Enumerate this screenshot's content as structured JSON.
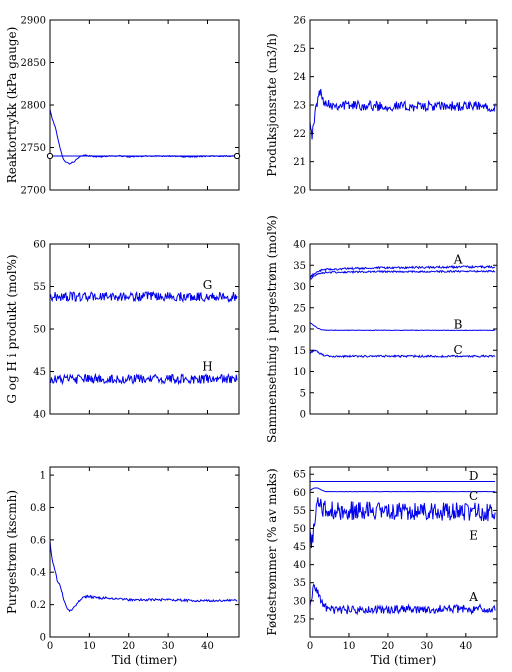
{
  "colors": {
    "line": "#0000ee",
    "axis": "#000000",
    "background": "#ffffff"
  },
  "chart_data": [
    {
      "type": "line",
      "ylabel": "Reaktortrykk (kPa gauge)",
      "xlabel": "",
      "xlim": [
        0,
        48
      ],
      "ylim": [
        2700,
        2900
      ],
      "xticks": [
        0,
        10,
        20,
        30,
        40
      ],
      "yticks": [
        2700,
        2750,
        2800,
        2850,
        2900
      ],
      "xticklabels": [],
      "yticklabels": [
        "2700",
        "2750",
        "2800",
        "2850",
        "2900"
      ],
      "grid": false,
      "series": [
        {
          "points": [
            [
              0,
              2795
            ],
            [
              0.5,
              2785
            ],
            [
              1,
              2778
            ],
            [
              1.5,
              2772
            ],
            [
              2,
              2760
            ],
            [
              2.5,
              2750
            ],
            [
              3,
              2742
            ],
            [
              3.5,
              2736
            ],
            [
              4,
              2733
            ],
            [
              5,
              2731
            ],
            [
              6,
              2733
            ],
            [
              7,
              2737
            ],
            [
              8,
              2740
            ],
            [
              9,
              2741
            ],
            [
              10,
              2740
            ],
            [
              12,
              2739
            ],
            [
              15,
              2740
            ],
            [
              18,
              2740
            ],
            [
              20,
              2739
            ],
            [
              25,
              2740
            ],
            [
              30,
              2740
            ],
            [
              35,
              2739
            ],
            [
              40,
              2740
            ],
            [
              45,
              2740
            ],
            [
              47.5,
              2740
            ]
          ],
          "noise": 0.7
        },
        {
          "points": [
            [
              0,
              2740
            ],
            [
              47.5,
              2740
            ]
          ],
          "noise": 0
        }
      ],
      "annotations": [
        {
          "text": "",
          "x": 0,
          "y": 2740,
          "kind": "marker-circle"
        },
        {
          "text": "",
          "x": 47.5,
          "y": 2740,
          "kind": "marker-circle"
        }
      ]
    },
    {
      "type": "line",
      "ylabel": "Produksjonsrate (m3/h)",
      "xlabel": "",
      "xlim": [
        0,
        48
      ],
      "ylim": [
        20,
        26
      ],
      "xticks": [
        0,
        10,
        20,
        30,
        40
      ],
      "yticks": [
        20,
        21,
        22,
        23,
        24,
        25,
        26
      ],
      "xticklabels": [],
      "yticklabels": [
        "20",
        "21",
        "22",
        "23",
        "24",
        "25",
        "26"
      ],
      "grid": false,
      "series": [
        {
          "points": [
            [
              0,
              22.6
            ],
            [
              0.5,
              21.9
            ],
            [
              1,
              22.3
            ],
            [
              1.5,
              22.9
            ],
            [
              2,
              23.2
            ],
            [
              2.5,
              23.5
            ],
            [
              3,
              23.3
            ],
            [
              4,
              23.1
            ],
            [
              6,
              23.0
            ],
            [
              10,
              23.0
            ],
            [
              20,
              22.95
            ],
            [
              30,
              22.95
            ],
            [
              40,
              22.95
            ],
            [
              47.5,
              22.95
            ]
          ],
          "noise": 0.18
        }
      ],
      "annotations": []
    },
    {
      "type": "line",
      "ylabel": "G og H i produkt (mol%)",
      "xlabel": "",
      "xlim": [
        0,
        48
      ],
      "ylim": [
        40,
        60
      ],
      "xticks": [
        0,
        10,
        20,
        30,
        40
      ],
      "yticks": [
        40,
        45,
        50,
        55,
        60
      ],
      "xticklabels": [],
      "yticklabels": [
        "40",
        "45",
        "50",
        "55",
        "60"
      ],
      "grid": false,
      "series": [
        {
          "name": "G",
          "points": [
            [
              0,
              53.8
            ],
            [
              47.5,
              53.8
            ]
          ],
          "noise": 0.55
        },
        {
          "name": "H",
          "points": [
            [
              0,
              44.1
            ],
            [
              47.5,
              44.1
            ]
          ],
          "noise": 0.55
        }
      ],
      "annotations": [
        {
          "text": "G",
          "x": 40,
          "y": 55.2
        },
        {
          "text": "H",
          "x": 40,
          "y": 45.6
        }
      ]
    },
    {
      "type": "line",
      "ylabel": "Sammensetning i purgestrøm (mol%)",
      "xlabel": "",
      "xlim": [
        0,
        48
      ],
      "ylim": [
        0,
        40
      ],
      "xticks": [
        0,
        10,
        20,
        30,
        40
      ],
      "yticks": [
        0,
        5,
        10,
        15,
        20,
        25,
        30,
        35,
        40
      ],
      "xticklabels": [],
      "yticklabels": [
        "0",
        "5",
        "10",
        "15",
        "20",
        "25",
        "30",
        "35",
        "40"
      ],
      "grid": false,
      "series": [
        {
          "name": "A",
          "points": [
            [
              0,
              32.0
            ],
            [
              1,
              33.0
            ],
            [
              2,
              33.6
            ],
            [
              4,
              34.0
            ],
            [
              10,
              34.2
            ],
            [
              20,
              34.4
            ],
            [
              30,
              34.5
            ],
            [
              40,
              34.6
            ],
            [
              47.5,
              34.6
            ]
          ],
          "noise": 0.25
        },
        {
          "points": [
            [
              0,
              31.5
            ],
            [
              1,
              32.5
            ],
            [
              2,
              33.0
            ],
            [
              4,
              33.3
            ],
            [
              10,
              33.4
            ],
            [
              20,
              33.5
            ],
            [
              30,
              33.5
            ],
            [
              40,
              33.6
            ],
            [
              47.5,
              33.6
            ]
          ],
          "noise": 0.2
        },
        {
          "name": "B",
          "points": [
            [
              0,
              21.5
            ],
            [
              1,
              20.8
            ],
            [
              2,
              20.2
            ],
            [
              3,
              19.8
            ],
            [
              5,
              19.7
            ],
            [
              10,
              19.7
            ],
            [
              47.5,
              19.7
            ]
          ],
          "noise": 0.06
        },
        {
          "name": "C",
          "points": [
            [
              0,
              14.2
            ],
            [
              1,
              15.0
            ],
            [
              2,
              14.6
            ],
            [
              3,
              14.0
            ],
            [
              5,
              13.5
            ],
            [
              10,
              13.6
            ],
            [
              47.5,
              13.6
            ]
          ],
          "noise": 0.22
        }
      ],
      "annotations": [
        {
          "text": "A",
          "x": 38,
          "y": 36.3
        },
        {
          "text": "B",
          "x": 38,
          "y": 21.1
        },
        {
          "text": "C",
          "x": 38,
          "y": 15.1
        }
      ]
    },
    {
      "type": "line",
      "ylabel": "Purgestrøm (kscmh)",
      "xlabel": "Tid (timer)",
      "xlim": [
        0,
        48
      ],
      "ylim": [
        0,
        1.05
      ],
      "xticks": [
        0,
        10,
        20,
        30,
        40
      ],
      "yticks": [
        0,
        0.2,
        0.4,
        0.6,
        0.8,
        1
      ],
      "xticklabels": [
        "0",
        "10",
        "20",
        "30",
        "40"
      ],
      "yticklabels": [
        "0",
        "0.2",
        "0.4",
        "0.6",
        "0.8",
        "1"
      ],
      "grid": false,
      "series": [
        {
          "points": [
            [
              0,
              0.6
            ],
            [
              0.3,
              0.52
            ],
            [
              0.8,
              0.45
            ],
            [
              1.2,
              0.42
            ],
            [
              1.8,
              0.35
            ],
            [
              2.5,
              0.33
            ],
            [
              3,
              0.28
            ],
            [
              3.5,
              0.23
            ],
            [
              4,
              0.2
            ],
            [
              4.5,
              0.17
            ],
            [
              5,
              0.16
            ],
            [
              6,
              0.18
            ],
            [
              7,
              0.21
            ],
            [
              8,
              0.24
            ],
            [
              9,
              0.25
            ],
            [
              10,
              0.25
            ],
            [
              12,
              0.24
            ],
            [
              15,
              0.24
            ],
            [
              20,
              0.23
            ],
            [
              25,
              0.23
            ],
            [
              30,
              0.23
            ],
            [
              35,
              0.225
            ],
            [
              40,
              0.225
            ],
            [
              47.5,
              0.225
            ]
          ],
          "noise": 0.007
        }
      ],
      "annotations": []
    },
    {
      "type": "line",
      "ylabel": "Fødestrømmer (% av maks)",
      "xlabel": "Tid (timer)",
      "xlim": [
        0,
        48
      ],
      "ylim": [
        20,
        67
      ],
      "xticks": [
        0,
        10,
        20,
        30,
        40
      ],
      "yticks": [
        25,
        30,
        35,
        40,
        45,
        50,
        55,
        60,
        65
      ],
      "xticklabels": [
        "0",
        "10",
        "20",
        "30",
        "40"
      ],
      "yticklabels": [
        "25",
        "30",
        "35",
        "40",
        "45",
        "50",
        "55",
        "60",
        "65"
      ],
      "grid": false,
      "series": [
        {
          "name": "D",
          "points": [
            [
              0,
              63.0
            ],
            [
              47.5,
              63.0
            ]
          ],
          "noise": 0
        },
        {
          "name": "C",
          "points": [
            [
              0,
              60.5
            ],
            [
              1,
              61.2
            ],
            [
              2,
              61.2
            ],
            [
              3,
              60.6
            ],
            [
              4,
              60.2
            ],
            [
              47.5,
              60.2
            ]
          ],
          "noise": 0.03
        },
        {
          "name": "E",
          "points": [
            [
              0,
              49.0
            ],
            [
              0.5,
              46.0
            ],
            [
              1,
              50.0
            ],
            [
              1.5,
              55.0
            ],
            [
              2,
              58.0
            ],
            [
              3,
              56.0
            ],
            [
              4,
              55.0
            ],
            [
              47.5,
              54.5
            ]
          ],
          "noise": 2.6
        },
        {
          "name": "A",
          "points": [
            [
              0,
              28.0
            ],
            [
              0.5,
              31.0
            ],
            [
              1,
              35.0
            ],
            [
              1.5,
              33.5
            ],
            [
              2,
              32.0
            ],
            [
              3,
              30.0
            ],
            [
              4,
              28.0
            ],
            [
              6,
              27.5
            ],
            [
              47.5,
              27.8
            ]
          ],
          "noise": 1.2
        }
      ],
      "annotations": [
        {
          "text": "D",
          "x": 42,
          "y": 64.5
        },
        {
          "text": "C",
          "x": 42,
          "y": 59
        },
        {
          "text": "E",
          "x": 42,
          "y": 48
        },
        {
          "text": "A",
          "x": 42,
          "y": 31
        }
      ]
    }
  ]
}
